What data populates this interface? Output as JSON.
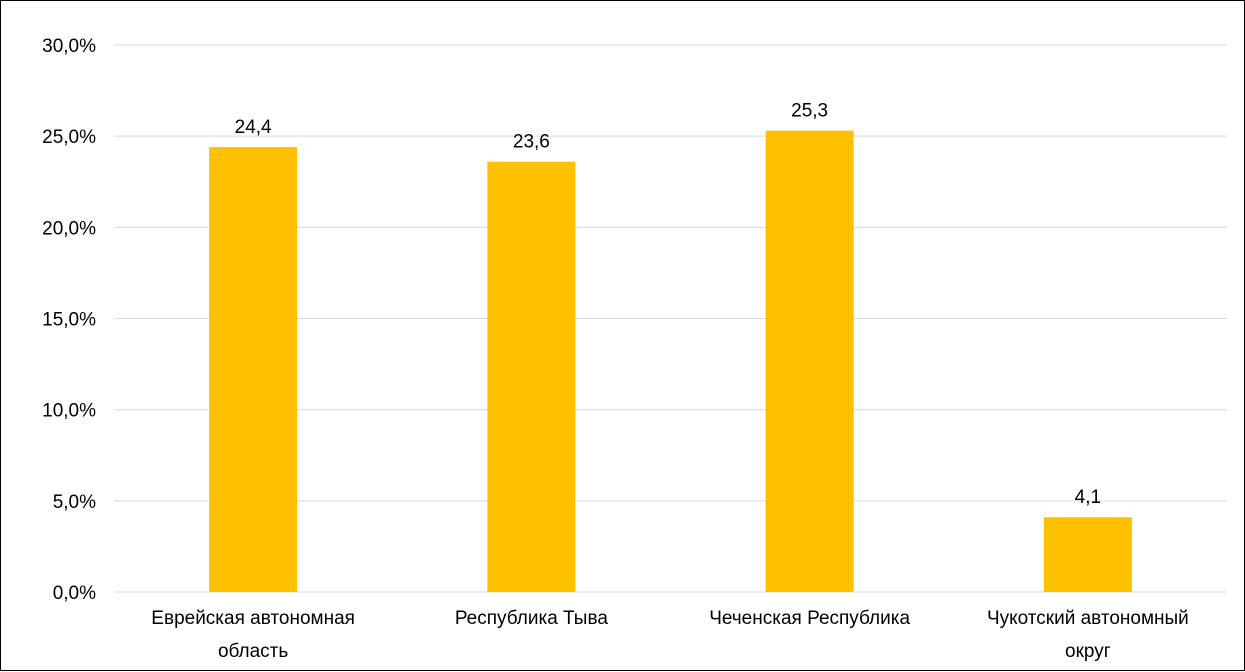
{
  "chart_data": {
    "type": "bar",
    "title": "",
    "xlabel": "",
    "ylabel": "",
    "categories": [
      [
        "Еврейская автономная",
        "область"
      ],
      [
        "Республика Тыва"
      ],
      [
        "Чеченская Республика"
      ],
      [
        "Чукотский автономный",
        "округ"
      ]
    ],
    "values": [
      24.4,
      23.6,
      25.3,
      4.1
    ],
    "data_labels": [
      "24,4",
      "23,6",
      "25,3",
      "4,1"
    ],
    "ylim": [
      0,
      30
    ],
    "y_ticks": [
      0,
      5,
      10,
      15,
      20,
      25,
      30
    ],
    "y_tick_labels": [
      "0,0%",
      "5,0%",
      "10,0%",
      "15,0%",
      "20,0%",
      "25,0%",
      "30,0%"
    ],
    "grid": true,
    "legend": "none",
    "colors": {
      "bar": "#FFC000",
      "grid": "#D9D9D9",
      "text": "#000000"
    }
  }
}
